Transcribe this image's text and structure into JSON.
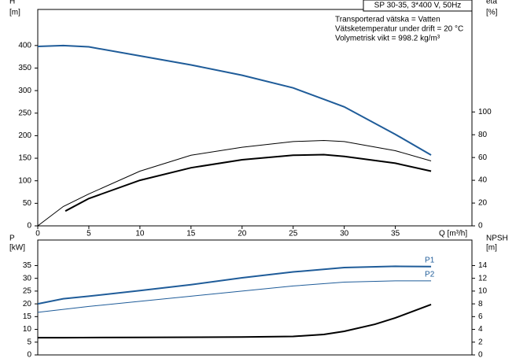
{
  "chart_data": [
    {
      "type": "line",
      "title": "SP 30-35, 3*400 V, 50Hz",
      "annotations": [
        "Transporterad vätska = Vatten",
        "Vätsketemperatur under drift = 20 °C",
        "Volymetrisk vikt = 998.2 kg/m³"
      ],
      "y_label": "H",
      "y_unit": "[m]",
      "y2_label": "eta",
      "y2_unit": "[%]",
      "x_label": "Q [m³/h]",
      "xlim": [
        0,
        42.5
      ],
      "xticks": [
        0,
        5,
        10,
        15,
        20,
        25,
        30,
        35
      ],
      "ylim": [
        0,
        480
      ],
      "yticks": [
        0,
        50,
        100,
        150,
        200,
        250,
        300,
        350,
        400
      ],
      "y2lim": [
        0,
        190
      ],
      "y2ticks": [
        0,
        20,
        40,
        60,
        80,
        100
      ],
      "series": [
        {
          "color": "#1f5c99",
          "x": [
            0,
            2.5,
            5,
            10,
            15,
            20,
            25,
            30,
            35,
            38.5
          ],
          "values": [
            398,
            400,
            397,
            377,
            357,
            334,
            306,
            264,
            203,
            157
          ]
        },
        {
          "color": "#000000",
          "axis": "y2",
          "x": [
            0,
            2.5,
            5,
            10,
            15,
            20,
            25,
            28,
            30,
            35,
            38.5
          ],
          "values": [
            0,
            17,
            28,
            48,
            62,
            69,
            74,
            75,
            74,
            66,
            57
          ]
        },
        {
          "color": "#000000",
          "axis": "y2",
          "x": [
            2.7,
            5,
            10,
            15,
            20,
            25,
            28,
            30,
            35,
            38.5
          ],
          "values": [
            13,
            24,
            40,
            51,
            58,
            62,
            62.5,
            61,
            55,
            48
          ]
        }
      ]
    },
    {
      "type": "line",
      "y_label": "P",
      "y_unit": "[kW]",
      "y2_label": "NPSH",
      "y2_unit": "[m]",
      "xlim": [
        0,
        42.5
      ],
      "ylim": [
        0,
        45
      ],
      "yticks": [
        0,
        5,
        10,
        15,
        20,
        25,
        30,
        35
      ],
      "y2lim": [
        0,
        18
      ],
      "y2ticks": [
        0,
        2,
        4,
        6,
        8,
        10,
        12,
        14
      ],
      "series": [
        {
          "name": "P1",
          "color": "#1f5c99",
          "x": [
            0,
            2.5,
            5,
            10,
            15,
            20,
            25,
            30,
            35,
            38.5
          ],
          "values": [
            20,
            22,
            23,
            25.2,
            27.5,
            30.2,
            32.5,
            34.2,
            34.7,
            34.6
          ]
        },
        {
          "name": "P2",
          "color": "#1f5c99",
          "x": [
            0,
            5,
            10,
            15,
            20,
            25,
            30,
            35,
            38.5
          ],
          "values": [
            16.7,
            19,
            21,
            23,
            25,
            27,
            28.5,
            29,
            29
          ]
        },
        {
          "color": "#000000",
          "axis": "y2",
          "x": [
            0,
            2.5,
            10,
            20,
            25,
            28,
            30,
            33,
            35,
            38.5
          ],
          "values": [
            2.7,
            2.7,
            2.75,
            2.8,
            2.9,
            3.2,
            3.7,
            4.8,
            5.8,
            7.9
          ]
        }
      ]
    }
  ]
}
